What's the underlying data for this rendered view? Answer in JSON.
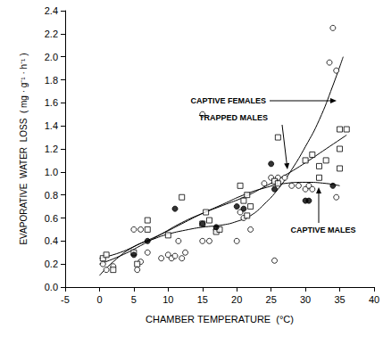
{
  "chart_data": {
    "type": "scatter",
    "x_label": "CHAMBER TEMPERATURE  (°C)",
    "y_label": "EVAPORATIVE  WATER  LOSS  ( mg · g⁻¹ · h⁻¹ )",
    "xlim": [
      -5,
      40
    ],
    "xticks": [
      -5,
      0,
      5,
      10,
      15,
      20,
      25,
      30,
      35,
      40
    ],
    "ylim": [
      0,
      2.4
    ],
    "yticks": [
      {
        "value": 0,
        "label": "0.0"
      },
      {
        "value": 0.2,
        "label": "0.2"
      },
      {
        "value": 0.4,
        "label": "0.4"
      },
      {
        "value": 0.6,
        "label": "0.6"
      },
      {
        "value": 0.8,
        "label": "0.8"
      },
      {
        "value": 1.0,
        "label": "1.0"
      },
      {
        "value": 1.2,
        "label": "1.2"
      },
      {
        "value": 1.4,
        "label": "1.4"
      },
      {
        "value": 1.6,
        "label": "1.6"
      },
      {
        "value": 1.8,
        "label": "1.8"
      },
      {
        "value": 2.0,
        "label": "2.0"
      },
      {
        "value": 2.2,
        "label": "2.2"
      },
      {
        "value": 2.4,
        "label": "2.4"
      }
    ],
    "grid": false,
    "series": [
      {
        "name": "CAPTIVE FEMALES",
        "color": "#000000",
        "marker": "open_circle",
        "x": [
          0.5,
          1,
          2,
          5,
          5.5,
          6,
          6,
          7,
          9,
          10,
          10.5,
          11,
          11.5,
          12,
          12.5,
          15,
          15,
          16,
          17,
          20,
          20.5,
          21,
          22,
          24,
          25,
          25.5,
          26,
          27,
          28,
          29,
          30,
          30.5,
          31,
          33.5,
          34,
          34.5,
          34.5
        ],
        "values": [
          0.2,
          0.15,
          0.18,
          0.5,
          0.15,
          0.5,
          0.22,
          0.3,
          0.25,
          0.28,
          0.25,
          0.27,
          0.4,
          0.25,
          0.3,
          1.5,
          0.4,
          0.4,
          0.5,
          0.4,
          0.65,
          0.6,
          0.5,
          0.9,
          0.95,
          0.23,
          0.95,
          0.95,
          0.88,
          0.88,
          0.85,
          0.88,
          0.85,
          1.95,
          2.25,
          1.88,
          0.78
        ],
        "curve": {
          "x": [
            0,
            2,
            5,
            8,
            10,
            13,
            15,
            18,
            20,
            22,
            24,
            26,
            28,
            30,
            32,
            34,
            35.5
          ],
          "values": [
            0.1,
            0.22,
            0.35,
            0.42,
            0.46,
            0.5,
            0.52,
            0.54,
            0.57,
            0.62,
            0.72,
            0.85,
            1.02,
            1.22,
            1.45,
            1.75,
            2.0
          ]
        }
      },
      {
        "name": "TRAPPED MALES",
        "color": "#000000",
        "marker": "open_square",
        "x": [
          0.5,
          1,
          2,
          5,
          5.5,
          7,
          7,
          10,
          12,
          15,
          15.5,
          16,
          17,
          17.5,
          20.5,
          21,
          21.5,
          21.5,
          22,
          25.5,
          26,
          26,
          30,
          31,
          32,
          32,
          33,
          35,
          35,
          35,
          36
        ],
        "values": [
          0.25,
          0.28,
          0.15,
          0.3,
          0.2,
          0.58,
          0.5,
          0.45,
          0.78,
          0.55,
          0.65,
          0.58,
          0.48,
          0.5,
          0.88,
          0.75,
          0.8,
          0.62,
          0.7,
          0.92,
          1.3,
          0.9,
          1.1,
          1.15,
          1.05,
          0.95,
          1.1,
          1.37,
          1.2,
          1.03,
          1.37
        ],
        "curve": {
          "x": [
            0,
            3,
            6,
            9,
            12,
            15,
            18,
            21,
            24,
            27,
            30,
            33,
            36
          ],
          "values": [
            0.2,
            0.27,
            0.36,
            0.46,
            0.56,
            0.64,
            0.71,
            0.78,
            0.87,
            0.97,
            1.08,
            1.2,
            1.32
          ]
        }
      },
      {
        "name": "CAPTIVE MALES",
        "color": "#000000",
        "marker": "filled_circle",
        "x": [
          5,
          7,
          11,
          15,
          17,
          20,
          21,
          25,
          25.5,
          30,
          30.5,
          34
        ],
        "values": [
          0.28,
          0.4,
          0.68,
          0.55,
          0.52,
          0.7,
          0.68,
          1.07,
          0.85,
          0.75,
          0.75,
          0.88
        ],
        "curve": {
          "x": [
            0,
            3,
            6,
            9,
            12,
            15,
            18,
            21,
            24,
            27,
            30,
            33,
            35
          ],
          "values": [
            0.25,
            0.3,
            0.38,
            0.46,
            0.55,
            0.64,
            0.72,
            0.8,
            0.86,
            0.9,
            0.91,
            0.9,
            0.88
          ]
        }
      }
    ]
  }
}
